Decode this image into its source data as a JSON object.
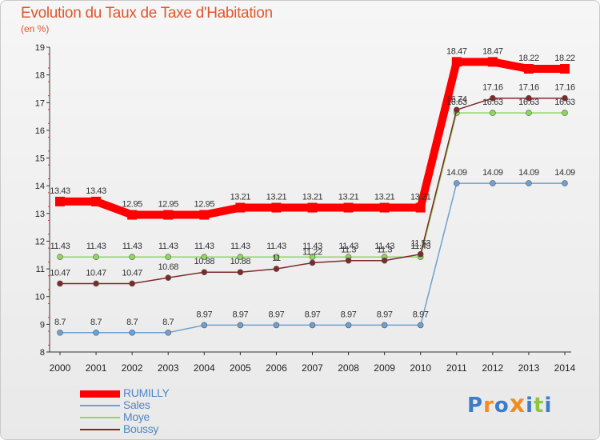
{
  "title": "Evolution du Taux de Taxe d'Habitation",
  "subtitle": "(en %)",
  "logo": {
    "text": "Proxiti",
    "letter_colors": [
      "#3d7cc9",
      "#f28c1e",
      "#3d7cc9",
      "#f28c1e",
      "#3d7cc9",
      "#8cc63f",
      "#3d7cc9"
    ]
  },
  "chart_data": {
    "type": "line",
    "x": [
      "2000",
      "2001",
      "2002",
      "2003",
      "2004",
      "2005",
      "2006",
      "2007",
      "2008",
      "2009",
      "2010",
      "2011",
      "2012",
      "2013",
      "2014"
    ],
    "ylim": [
      8,
      19
    ],
    "yticks": [
      8,
      9,
      10,
      11,
      12,
      13,
      14,
      15,
      16,
      17,
      18,
      19
    ],
    "grid": false,
    "legend_position": "bottom-left",
    "series": [
      {
        "name": "RUMILLY",
        "color": "#ff0000",
        "values": [
          13.43,
          13.43,
          12.95,
          12.95,
          12.95,
          13.21,
          13.21,
          13.21,
          13.21,
          13.21,
          13.21,
          18.47,
          18.47,
          18.22,
          18.22
        ],
        "labels": [
          "13.43",
          "13.43",
          "12.95",
          "12.95",
          "12.95",
          "13.21",
          "13.21",
          "13.21",
          "13.21",
          "13.21",
          "13.21",
          "18.47",
          "18.47",
          "18.22",
          "18.22"
        ]
      },
      {
        "name": "Sales",
        "color": "#6fa0d2",
        "values": [
          8.7,
          8.7,
          8.7,
          8.7,
          8.97,
          8.97,
          8.97,
          8.97,
          8.97,
          8.97,
          8.97,
          14.09,
          14.09,
          14.09,
          14.09
        ],
        "labels": [
          "8.7",
          "8.7",
          "8.7",
          "8.7",
          "8.97",
          "8.97",
          "8.97",
          "8.97",
          "8.97",
          "8.97",
          "8.97",
          "14.09",
          "14.09",
          "14.09",
          "14.09"
        ]
      },
      {
        "name": "Moye",
        "color": "#8fd65e",
        "values": [
          11.43,
          11.43,
          11.43,
          11.43,
          11.43,
          11.43,
          11.43,
          11.43,
          11.43,
          11.43,
          11.43,
          16.63,
          16.63,
          16.63,
          16.63
        ],
        "labels": [
          "11.43",
          "11.43",
          "11.43",
          "11.43",
          "11.43",
          "11.43",
          "11.43",
          "11.43",
          "11.43",
          "11.43",
          "11.43",
          "16.63",
          "16.63",
          "16.63",
          "16.63"
        ]
      },
      {
        "name": "Boussy",
        "color": "#7f2a2a",
        "values": [
          10.47,
          10.47,
          10.47,
          10.68,
          10.88,
          10.88,
          11,
          11.22,
          11.3,
          11.3,
          11.53,
          16.74,
          17.16,
          17.16,
          17.16
        ],
        "labels": [
          "10.47",
          "10.47",
          "10.47",
          "10.68",
          "10.88",
          "10.88",
          "11",
          "11.22",
          "11.3",
          "11.3",
          "11.53",
          "16.74",
          "17.16",
          "17.16",
          "17.16"
        ]
      }
    ]
  }
}
